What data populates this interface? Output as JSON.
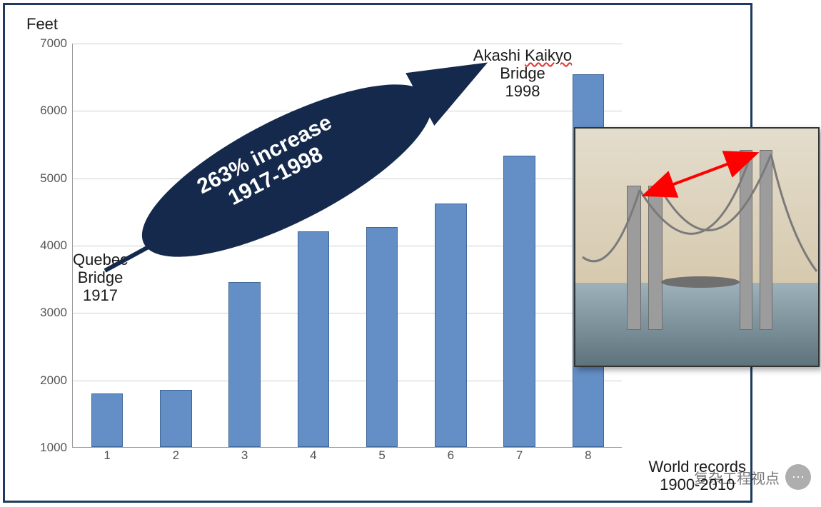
{
  "chart": {
    "type": "bar",
    "ylabel": "Feet",
    "x_axis_label": "World records\n1900-2010",
    "categories": [
      "1",
      "2",
      "3",
      "4",
      "5",
      "6",
      "7",
      "8"
    ],
    "values": [
      1800,
      1850,
      3450,
      4200,
      4260,
      4620,
      5320,
      6530
    ],
    "bar_color": "#638ec6",
    "bar_border_color": "#3f6797",
    "bar_width": 0.46,
    "ylim": [
      1000,
      7000
    ],
    "ytick_step": 1000,
    "grid_color": "#cfcfcf",
    "axis_color": "#999999",
    "background_color": "#ffffff",
    "tick_fontsize": 17,
    "label_fontsize": 22
  },
  "annotations": {
    "first_bar": "Quebec\nBridge\n1917",
    "last_bar_l1": "Akashi",
    "last_bar_l1b": "Kaikyo",
    "last_bar_l2": "Bridge",
    "last_bar_l3": "1998",
    "ellipse_line1": "263% increase",
    "ellipse_line2": "1917-1998",
    "ellipse_fill": "#14294c",
    "ellipse_text_color": "#ffffff",
    "ellipse_text_fontsize": 30,
    "annot_fontsize": 22
  },
  "photo": {
    "present": true,
    "border_color": "#333333",
    "arrow_color": "#ff0000",
    "caption": "bridge span illustration"
  },
  "frame": {
    "border_color": "#1d3a5f",
    "border_width": 3
  },
  "watermark": {
    "text": "复杂工程视点",
    "icon": "⋯"
  }
}
